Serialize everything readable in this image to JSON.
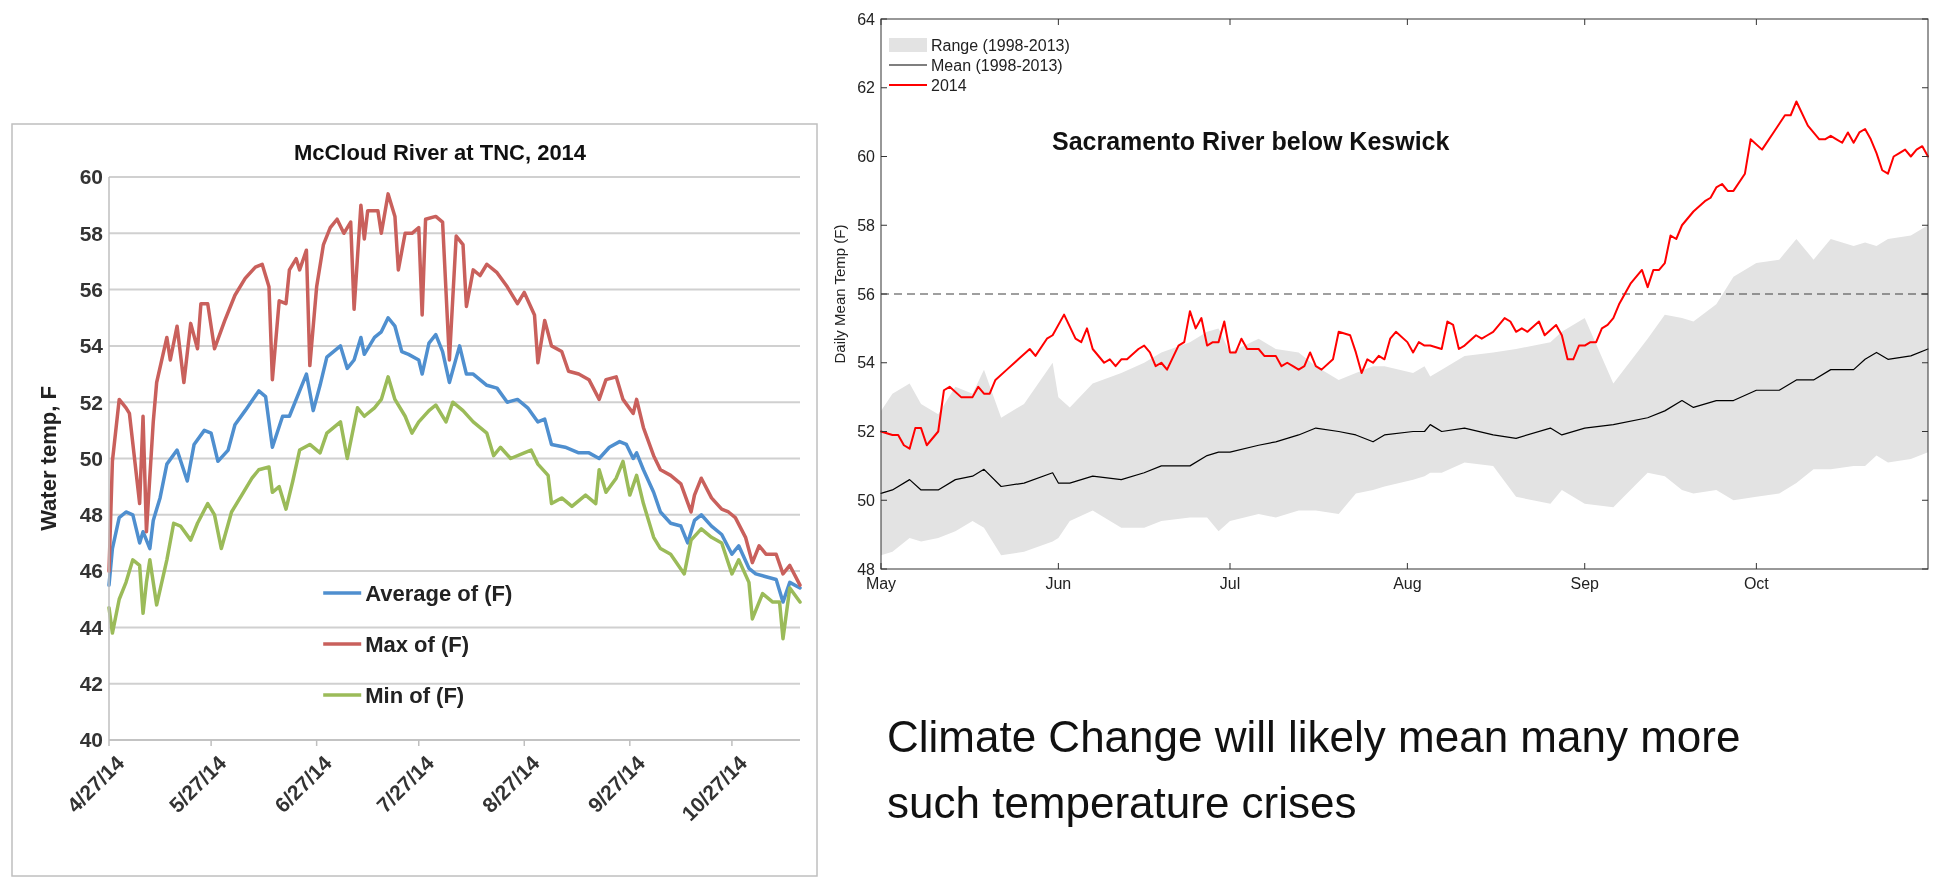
{
  "chart_data": [
    {
      "type": "line",
      "title": "McCloud River at TNC, 2014",
      "ylabel": "Water temp, F",
      "xlim": [
        "2014-04-27",
        "2014-11-16"
      ],
      "ylim": [
        40,
        60
      ],
      "yticks": [
        40,
        42,
        44,
        46,
        48,
        50,
        52,
        54,
        56,
        58,
        60
      ],
      "xticks": [
        {
          "value": "2014-04-27",
          "label": "4/27/14"
        },
        {
          "value": "2014-05-27",
          "label": "5/27/14"
        },
        {
          "value": "2014-06-27",
          "label": "6/27/14"
        },
        {
          "value": "2014-07-27",
          "label": "7/27/14"
        },
        {
          "value": "2014-08-27",
          "label": "8/27/14"
        },
        {
          "value": "2014-09-27",
          "label": "9/27/14"
        },
        {
          "value": "2014-10-27",
          "label": "10/27/14"
        }
      ],
      "grid": "y",
      "legend": "bottom",
      "series": [
        {
          "name": "Average of (F)",
          "color": "#4f8fcf",
          "x": [
            "2014-04-27",
            "2014-04-28",
            "2014-04-30",
            "2014-05-02",
            "2014-05-04",
            "2014-05-06",
            "2014-05-07",
            "2014-05-09",
            "2014-05-10",
            "2014-05-12",
            "2014-05-14",
            "2014-05-17",
            "2014-05-20",
            "2014-05-22",
            "2014-05-25",
            "2014-05-27",
            "2014-05-29",
            "2014-06-01",
            "2014-06-03",
            "2014-06-06",
            "2014-06-10",
            "2014-06-12",
            "2014-06-14",
            "2014-06-17",
            "2014-06-19",
            "2014-06-22",
            "2014-06-24",
            "2014-06-26",
            "2014-06-28",
            "2014-06-30",
            "2014-07-04",
            "2014-07-06",
            "2014-07-08",
            "2014-07-10",
            "2014-07-11",
            "2014-07-14",
            "2014-07-16",
            "2014-07-18",
            "2014-07-20",
            "2014-07-22",
            "2014-07-24",
            "2014-07-27",
            "2014-07-28",
            "2014-07-30",
            "2014-08-01",
            "2014-08-03",
            "2014-08-05",
            "2014-08-08",
            "2014-08-10",
            "2014-08-12",
            "2014-08-16",
            "2014-08-19",
            "2014-08-22",
            "2014-08-25",
            "2014-08-28",
            "2014-08-31",
            "2014-09-02",
            "2014-09-04",
            "2014-09-08",
            "2014-09-12",
            "2014-09-15",
            "2014-09-18",
            "2014-09-21",
            "2014-09-24",
            "2014-09-26",
            "2014-09-28",
            "2014-09-29",
            "2014-10-01",
            "2014-10-04",
            "2014-10-06",
            "2014-10-09",
            "2014-10-12",
            "2014-10-14",
            "2014-10-16",
            "2014-10-18",
            "2014-10-21",
            "2014-10-24",
            "2014-10-27",
            "2014-10-29",
            "2014-11-01",
            "2014-11-03",
            "2014-11-06",
            "2014-11-09",
            "2014-11-11",
            "2014-11-13",
            "2014-11-16"
          ],
          "values": [
            45.5,
            46.8,
            47.9,
            48.1,
            48.0,
            47.0,
            47.4,
            46.8,
            47.8,
            48.6,
            49.8,
            50.3,
            49.2,
            50.5,
            51.0,
            50.9,
            49.9,
            50.3,
            51.2,
            51.7,
            52.4,
            52.2,
            50.4,
            51.5,
            51.5,
            52.4,
            53.0,
            51.7,
            52.6,
            53.6,
            54.0,
            53.2,
            53.5,
            54.3,
            53.7,
            54.3,
            54.5,
            55.0,
            54.7,
            53.8,
            53.7,
            53.5,
            53.0,
            54.1,
            54.4,
            53.8,
            52.7,
            54.0,
            53.0,
            53.0,
            52.6,
            52.5,
            52.0,
            52.1,
            51.8,
            51.3,
            51.4,
            50.5,
            50.4,
            50.2,
            50.2,
            50.0,
            50.4,
            50.6,
            50.5,
            50.0,
            50.2,
            49.6,
            48.8,
            48.1,
            47.7,
            47.6,
            47.0,
            47.8,
            48.0,
            47.6,
            47.3,
            46.6,
            46.9,
            46.1,
            45.9,
            45.8,
            45.7,
            44.9,
            45.6,
            45.4
          ]
        },
        {
          "name": "Max of (F)",
          "color": "#c9605c",
          "x": [
            "2014-04-27",
            "2014-04-28",
            "2014-04-30",
            "2014-05-02",
            "2014-05-03",
            "2014-05-06",
            "2014-05-07",
            "2014-05-08",
            "2014-05-10",
            "2014-05-11",
            "2014-05-14",
            "2014-05-15",
            "2014-05-17",
            "2014-05-19",
            "2014-05-21",
            "2014-05-23",
            "2014-05-24",
            "2014-05-26",
            "2014-05-28",
            "2014-05-31",
            "2014-06-03",
            "2014-06-06",
            "2014-06-09",
            "2014-06-11",
            "2014-06-13",
            "2014-06-14",
            "2014-06-16",
            "2014-06-18",
            "2014-06-19",
            "2014-06-21",
            "2014-06-22",
            "2014-06-24",
            "2014-06-25",
            "2014-06-27",
            "2014-06-29",
            "2014-07-01",
            "2014-07-03",
            "2014-07-05",
            "2014-07-07",
            "2014-07-08",
            "2014-07-10",
            "2014-07-11",
            "2014-07-12",
            "2014-07-15",
            "2014-07-16",
            "2014-07-18",
            "2014-07-20",
            "2014-07-21",
            "2014-07-23",
            "2014-07-25",
            "2014-07-27",
            "2014-07-28",
            "2014-07-29",
            "2014-08-01",
            "2014-08-03",
            "2014-08-05",
            "2014-08-07",
            "2014-08-09",
            "2014-08-10",
            "2014-08-12",
            "2014-08-14",
            "2014-08-16",
            "2014-08-19",
            "2014-08-22",
            "2014-08-25",
            "2014-08-27",
            "2014-08-30",
            "2014-08-31",
            "2014-09-02",
            "2014-09-04",
            "2014-09-07",
            "2014-09-09",
            "2014-09-12",
            "2014-09-15",
            "2014-09-18",
            "2014-09-20",
            "2014-09-23",
            "2014-09-25",
            "2014-09-28",
            "2014-09-29",
            "2014-10-01",
            "2014-10-04",
            "2014-10-06",
            "2014-10-09",
            "2014-10-12",
            "2014-10-15",
            "2014-10-16",
            "2014-10-18",
            "2014-10-21",
            "2014-10-24",
            "2014-10-26",
            "2014-10-28",
            "2014-10-31",
            "2014-11-02",
            "2014-11-04",
            "2014-11-06",
            "2014-11-09",
            "2014-11-11",
            "2014-11-13",
            "2014-11-16"
          ],
          "values": [
            46.0,
            49.9,
            52.1,
            51.8,
            51.6,
            48.4,
            51.5,
            47.4,
            51.3,
            52.7,
            54.3,
            53.5,
            54.7,
            52.7,
            54.8,
            53.9,
            55.5,
            55.5,
            53.9,
            54.9,
            55.8,
            56.4,
            56.8,
            56.9,
            56.1,
            52.8,
            55.6,
            55.5,
            56.7,
            57.1,
            56.7,
            57.4,
            53.3,
            56.1,
            57.6,
            58.2,
            58.5,
            58.0,
            58.4,
            55.3,
            59.0,
            57.8,
            58.8,
            58.8,
            58.0,
            59.4,
            58.6,
            56.7,
            58.0,
            58.0,
            58.2,
            55.1,
            58.5,
            58.6,
            58.4,
            53.5,
            57.9,
            57.6,
            55.4,
            56.7,
            56.5,
            56.9,
            56.6,
            56.1,
            55.5,
            55.9,
            55.1,
            53.4,
            54.9,
            54.0,
            53.8,
            53.1,
            53.0,
            52.8,
            52.1,
            52.8,
            52.9,
            52.1,
            51.6,
            52.1,
            51.1,
            50.1,
            49.6,
            49.4,
            49.1,
            48.1,
            48.7,
            49.3,
            48.6,
            48.2,
            48.1,
            47.9,
            47.2,
            46.3,
            46.9,
            46.6,
            46.6,
            45.9,
            46.2,
            45.5
          ]
        },
        {
          "name": "Min of (F)",
          "color": "#9bbb59",
          "x": [
            "2014-04-27",
            "2014-04-28",
            "2014-04-30",
            "2014-05-02",
            "2014-05-04",
            "2014-05-06",
            "2014-05-07",
            "2014-05-08",
            "2014-05-09",
            "2014-05-11",
            "2014-05-14",
            "2014-05-16",
            "2014-05-18",
            "2014-05-21",
            "2014-05-23",
            "2014-05-26",
            "2014-05-28",
            "2014-05-30",
            "2014-06-02",
            "2014-06-05",
            "2014-06-08",
            "2014-06-10",
            "2014-06-13",
            "2014-06-14",
            "2014-06-16",
            "2014-06-18",
            "2014-06-20",
            "2014-06-22",
            "2014-06-25",
            "2014-06-28",
            "2014-06-30",
            "2014-07-04",
            "2014-07-06",
            "2014-07-09",
            "2014-07-11",
            "2014-07-14",
            "2014-07-16",
            "2014-07-18",
            "2014-07-20",
            "2014-07-23",
            "2014-07-25",
            "2014-07-27",
            "2014-07-30",
            "2014-08-01",
            "2014-08-04",
            "2014-08-06",
            "2014-08-09",
            "2014-08-12",
            "2014-08-16",
            "2014-08-18",
            "2014-08-20",
            "2014-08-23",
            "2014-08-27",
            "2014-08-29",
            "2014-08-31",
            "2014-09-03",
            "2014-09-04",
            "2014-09-07",
            "2014-09-10",
            "2014-09-14",
            "2014-09-17",
            "2014-09-18",
            "2014-09-20",
            "2014-09-23",
            "2014-09-25",
            "2014-09-27",
            "2014-09-29",
            "2014-10-01",
            "2014-10-04",
            "2014-10-06",
            "2014-10-09",
            "2014-10-13",
            "2014-10-15",
            "2014-10-18",
            "2014-10-21",
            "2014-10-24",
            "2014-10-27",
            "2014-10-29",
            "2014-11-01",
            "2014-11-02",
            "2014-11-05",
            "2014-11-08",
            "2014-11-10",
            "2014-11-11",
            "2014-11-13",
            "2014-11-16"
          ],
          "values": [
            44.7,
            43.8,
            45.0,
            45.6,
            46.4,
            46.2,
            44.5,
            45.6,
            46.4,
            44.8,
            46.4,
            47.7,
            47.6,
            47.1,
            47.7,
            48.4,
            48.0,
            46.8,
            48.1,
            48.7,
            49.3,
            49.6,
            49.7,
            48.8,
            49.0,
            48.2,
            49.2,
            50.3,
            50.5,
            50.2,
            50.9,
            51.3,
            50.0,
            51.8,
            51.5,
            51.8,
            52.1,
            52.9,
            52.1,
            51.5,
            50.9,
            51.3,
            51.7,
            51.9,
            51.3,
            52.0,
            51.7,
            51.3,
            50.9,
            50.1,
            50.4,
            50.0,
            50.2,
            50.3,
            49.8,
            49.4,
            48.4,
            48.6,
            48.3,
            48.7,
            48.4,
            49.6,
            48.8,
            49.3,
            49.9,
            48.7,
            49.4,
            48.4,
            47.2,
            46.8,
            46.6,
            45.9,
            47.1,
            47.5,
            47.2,
            47.0,
            45.9,
            46.4,
            45.6,
            44.3,
            45.2,
            44.9,
            44.9,
            43.6,
            45.4,
            44.9
          ]
        }
      ]
    },
    {
      "type": "line",
      "title": "Sacramento River below Keswick",
      "ylabel": "Daily Mean Temp (F)",
      "xlim": [
        "2014-05-01",
        "2014-10-31"
      ],
      "ylim": [
        48,
        64
      ],
      "yticks": [
        48,
        50,
        52,
        54,
        56,
        58,
        60,
        62,
        64
      ],
      "xticks": [
        {
          "value": "2014-05-01",
          "label": "May"
        },
        {
          "value": "2014-06-01",
          "label": "Jun"
        },
        {
          "value": "2014-07-01",
          "label": "Jul"
        },
        {
          "value": "2014-08-01",
          "label": "Aug"
        },
        {
          "value": "2014-09-01",
          "label": "Sep"
        },
        {
          "value": "2014-10-01",
          "label": "Oct"
        }
      ],
      "legend": "top left",
      "ref_lines": [
        {
          "axis": "y",
          "value": 56,
          "color": "#404040",
          "line_style": "dashed"
        }
      ],
      "series": [
        {
          "name": "Range (1998-2013)",
          "type": "area",
          "color": "#e3e3e3"
        },
        {
          "name": "Mean (1998-2013)",
          "type": "line",
          "color": "#000000",
          "x": [
            "2014-05-01",
            "2014-05-03",
            "2014-05-06",
            "2014-05-08",
            "2014-05-11",
            "2014-05-14",
            "2014-05-17",
            "2014-05-19",
            "2014-05-22",
            "2014-05-26",
            "2014-05-31",
            "2014-06-01",
            "2014-06-03",
            "2014-06-07",
            "2014-06-12",
            "2014-06-16",
            "2014-06-19",
            "2014-06-24",
            "2014-06-27",
            "2014-06-29",
            "2014-07-01",
            "2014-07-06",
            "2014-07-09",
            "2014-07-13",
            "2014-07-16",
            "2014-07-20",
            "2014-07-23",
            "2014-07-26",
            "2014-07-28",
            "2014-08-02",
            "2014-08-04",
            "2014-08-05",
            "2014-08-07",
            "2014-08-11",
            "2014-08-16",
            "2014-08-20",
            "2014-08-26",
            "2014-08-28",
            "2014-09-01",
            "2014-09-06",
            "2014-09-12",
            "2014-09-15",
            "2014-09-18",
            "2014-09-20",
            "2014-09-24",
            "2014-09-27",
            "2014-10-01",
            "2014-10-05",
            "2014-10-08",
            "2014-10-11",
            "2014-10-14",
            "2014-10-18",
            "2014-10-20",
            "2014-10-22",
            "2014-10-24",
            "2014-10-28",
            "2014-10-31"
          ],
          "values": [
            50.2,
            50.3,
            50.6,
            50.3,
            50.3,
            50.6,
            50.7,
            50.9,
            50.4,
            50.5,
            50.8,
            50.5,
            50.5,
            50.7,
            50.6,
            50.8,
            51.0,
            51.0,
            51.3,
            51.4,
            51.4,
            51.6,
            51.7,
            51.9,
            52.1,
            52.0,
            51.9,
            51.7,
            51.9,
            52.0,
            52.0,
            52.2,
            52.0,
            52.1,
            51.9,
            51.8,
            52.1,
            51.9,
            52.1,
            52.2,
            52.4,
            52.6,
            52.9,
            52.7,
            52.9,
            52.9,
            53.2,
            53.2,
            53.5,
            53.5,
            53.8,
            53.8,
            54.1,
            54.3,
            54.1,
            54.2,
            54.4
          ],
          "upper": [
            52.6,
            53.1,
            53.4,
            52.8,
            52.5,
            53.3,
            53.1,
            53.8,
            52.4,
            52.8,
            54.0,
            53.0,
            52.7,
            53.4,
            53.7,
            54.0,
            54.3,
            54.6,
            54.9,
            55.0,
            54.3,
            54.7,
            54.4,
            54.3,
            53.9,
            53.5,
            53.7,
            53.9,
            53.9,
            53.7,
            53.9,
            53.6,
            53.8,
            54.2,
            54.3,
            54.4,
            54.6,
            54.9,
            55.3,
            53.4,
            54.7,
            55.4,
            55.3,
            55.2,
            55.7,
            56.5,
            56.9,
            57.0,
            57.6,
            57.0,
            57.6,
            57.4,
            57.5,
            57.4,
            57.6,
            57.7,
            58.0
          ],
          "lower": [
            48.4,
            48.5,
            48.9,
            48.8,
            48.9,
            49.1,
            49.4,
            49.2,
            48.4,
            48.5,
            48.8,
            48.9,
            49.4,
            49.7,
            49.2,
            49.2,
            49.4,
            49.5,
            49.5,
            49.1,
            49.4,
            49.6,
            49.5,
            49.7,
            49.7,
            49.6,
            50.2,
            50.3,
            50.4,
            50.6,
            50.7,
            50.8,
            50.8,
            51.1,
            51.0,
            50.1,
            49.9,
            50.3,
            49.9,
            49.8,
            50.8,
            50.7,
            50.3,
            50.2,
            50.3,
            50.0,
            50.1,
            50.2,
            50.5,
            50.9,
            50.9,
            51.0,
            51.0,
            51.3,
            51.1,
            51.2,
            51.4
          ]
        },
        {
          "name": "2014",
          "type": "line",
          "color": "#ff0000",
          "x": [
            "2014-05-01",
            "2014-05-03",
            "2014-05-04",
            "2014-05-05",
            "2014-05-06",
            "2014-05-07",
            "2014-05-08",
            "2014-05-09",
            "2014-05-11",
            "2014-05-12",
            "2014-05-13",
            "2014-05-15",
            "2014-05-17",
            "2014-05-18",
            "2014-05-19",
            "2014-05-20",
            "2014-05-21",
            "2014-05-23",
            "2014-05-25",
            "2014-05-27",
            "2014-05-28",
            "2014-05-30",
            "2014-05-31",
            "2014-06-02",
            "2014-06-04",
            "2014-06-05",
            "2014-06-06",
            "2014-06-07",
            "2014-06-09",
            "2014-06-10",
            "2014-06-11",
            "2014-06-12",
            "2014-06-13",
            "2014-06-15",
            "2014-06-16",
            "2014-06-17",
            "2014-06-18",
            "2014-06-19",
            "2014-06-20",
            "2014-06-22",
            "2014-06-23",
            "2014-06-24",
            "2014-06-25",
            "2014-06-26",
            "2014-06-27",
            "2014-06-28",
            "2014-06-29",
            "2014-06-30",
            "2014-07-01",
            "2014-07-02",
            "2014-07-03",
            "2014-07-04",
            "2014-07-06",
            "2014-07-07",
            "2014-07-09",
            "2014-07-10",
            "2014-07-11",
            "2014-07-12",
            "2014-07-13",
            "2014-07-14",
            "2014-07-15",
            "2014-07-16",
            "2014-07-17",
            "2014-07-19",
            "2014-07-20",
            "2014-07-22",
            "2014-07-23",
            "2014-07-24",
            "2014-07-25",
            "2014-07-26",
            "2014-07-27",
            "2014-07-28",
            "2014-07-29",
            "2014-07-30",
            "2014-08-01",
            "2014-08-02",
            "2014-08-03",
            "2014-08-04",
            "2014-08-05",
            "2014-08-07",
            "2014-08-08",
            "2014-08-09",
            "2014-08-10",
            "2014-08-11",
            "2014-08-13",
            "2014-08-14",
            "2014-08-15",
            "2014-08-16",
            "2014-08-18",
            "2014-08-19",
            "2014-08-20",
            "2014-08-21",
            "2014-08-22",
            "2014-08-24",
            "2014-08-25",
            "2014-08-27",
            "2014-08-28",
            "2014-08-29",
            "2014-08-30",
            "2014-08-31",
            "2014-09-01",
            "2014-09-02",
            "2014-09-03",
            "2014-09-04",
            "2014-09-05",
            "2014-09-06",
            "2014-09-07",
            "2014-09-08",
            "2014-09-09",
            "2014-09-11",
            "2014-09-12",
            "2014-09-13",
            "2014-09-14",
            "2014-09-15",
            "2014-09-16",
            "2014-09-17",
            "2014-09-18",
            "2014-09-20",
            "2014-09-22",
            "2014-09-23",
            "2014-09-24",
            "2014-09-25",
            "2014-09-26",
            "2014-09-27",
            "2014-09-29",
            "2014-09-30",
            "2014-10-02",
            "2014-10-04",
            "2014-10-06",
            "2014-10-07",
            "2014-10-08",
            "2014-10-10",
            "2014-10-12",
            "2014-10-13",
            "2014-10-14",
            "2014-10-15",
            "2014-10-16",
            "2014-10-17",
            "2014-10-18",
            "2014-10-19",
            "2014-10-20",
            "2014-10-21",
            "2014-10-22",
            "2014-10-23",
            "2014-10-24",
            "2014-10-25",
            "2014-10-26",
            "2014-10-27",
            "2014-10-28",
            "2014-10-29",
            "2014-10-30",
            "2014-10-31"
          ],
          "values": [
            52.0,
            51.9,
            51.9,
            51.6,
            51.5,
            52.1,
            52.1,
            51.6,
            52.0,
            53.2,
            53.3,
            53.0,
            53.0,
            53.3,
            53.1,
            53.1,
            53.5,
            53.8,
            54.1,
            54.4,
            54.2,
            54.7,
            54.8,
            55.4,
            54.7,
            54.6,
            55.0,
            54.4,
            54.0,
            54.1,
            53.9,
            54.1,
            54.1,
            54.4,
            54.5,
            54.3,
            53.9,
            54.0,
            53.8,
            54.5,
            54.6,
            55.5,
            55.0,
            55.3,
            54.5,
            54.6,
            54.6,
            55.2,
            54.3,
            54.3,
            54.7,
            54.4,
            54.4,
            54.2,
            54.2,
            53.9,
            54.0,
            53.9,
            53.8,
            53.9,
            54.3,
            53.9,
            53.8,
            54.1,
            54.9,
            54.8,
            54.3,
            53.7,
            54.1,
            54.0,
            54.2,
            54.1,
            54.7,
            54.9,
            54.6,
            54.3,
            54.6,
            54.5,
            54.5,
            54.4,
            55.2,
            55.1,
            54.4,
            54.5,
            54.8,
            54.7,
            54.8,
            54.9,
            55.3,
            55.2,
            54.9,
            55.0,
            54.9,
            55.2,
            54.8,
            55.1,
            54.8,
            54.1,
            54.1,
            54.5,
            54.5,
            54.6,
            54.6,
            55.0,
            55.1,
            55.3,
            55.7,
            56.0,
            56.3,
            56.7,
            56.2,
            56.7,
            56.7,
            56.9,
            57.7,
            57.6,
            58.0,
            58.4,
            58.7,
            58.8,
            59.1,
            59.2,
            59.0,
            59.0,
            59.5,
            60.5,
            60.2,
            60.7,
            61.2,
            61.2,
            61.6,
            60.9,
            60.5,
            60.5,
            60.6,
            60.5,
            60.4,
            60.7,
            60.4,
            60.7,
            60.8,
            60.5,
            60.1,
            59.6,
            59.5,
            60.0,
            60.1,
            60.2,
            60.0,
            60.2,
            60.3,
            60.0
          ]
        }
      ]
    },
    {
      "type": "other",
      "annotations": [
        "Climate Change will likely mean many more such temperature crises"
      ]
    }
  ]
}
